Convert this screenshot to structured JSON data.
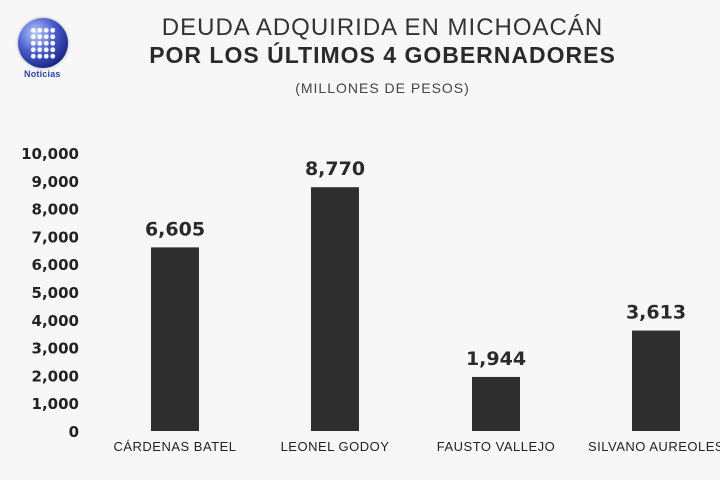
{
  "logo": {
    "text": "Noticias"
  },
  "chart_data": {
    "type": "bar",
    "title": "DEUDA ADQUIRIDA EN MICHOACÁN",
    "title_line2": "POR LOS ÚLTIMOS 4 GOBERNADORES",
    "subtitle": "(MILLONES DE PESOS)",
    "categories": [
      "CÁRDENAS BATEL",
      "LEONEL GODOY",
      "FAUSTO VALLEJO",
      "SILVANO AUREOLES"
    ],
    "values": [
      6605,
      8770,
      1944,
      3613
    ],
    "value_labels": [
      "6,605",
      "8,770",
      "1,944",
      "3,613"
    ],
    "yticks": [
      0,
      1000,
      2000,
      3000,
      4000,
      5000,
      6000,
      7000,
      8000,
      9000,
      10000
    ],
    "ytick_labels": [
      "0",
      "1,000",
      "2,000",
      "3,000",
      "4,000",
      "5,000",
      "6,000",
      "7,000",
      "8,000",
      "9,000",
      "10,000"
    ],
    "ylim": [
      0,
      10000
    ],
    "grid": false,
    "legend": "none",
    "bar_color": "#2e2e2e"
  }
}
